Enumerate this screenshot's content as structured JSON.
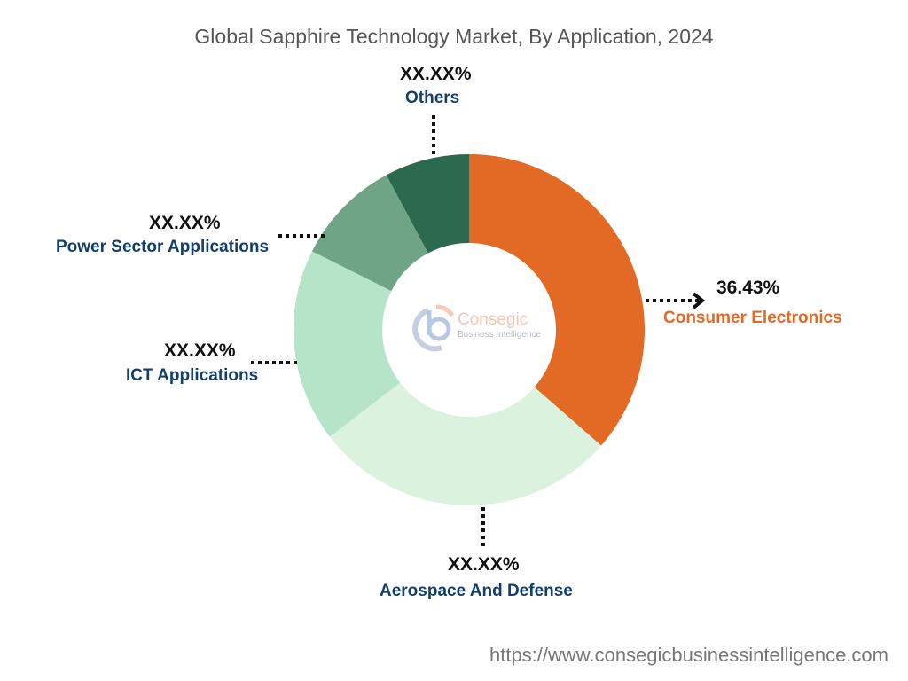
{
  "chart_data": {
    "type": "pie",
    "title": "Global Sapphire Technology Market, By Application, 2024",
    "categories": [
      "Consumer Electronics",
      "Aerospace And Defense",
      "ICT Applications",
      "Power Sector Applications",
      "Others"
    ],
    "values": [
      36.43,
      28.1,
      17.8,
      9.8,
      7.8
    ],
    "value_labels": [
      "36.43%",
      "XX.XX%",
      "XX.XX%",
      "XX.XX%",
      "XX.XX%"
    ],
    "colors": [
      "#E36A25",
      "#DAF2DE",
      "#B5E4C8",
      "#6FA586",
      "#2C6A4F"
    ],
    "donut": true
  },
  "logo": {
    "name": "Consegic",
    "sub": "Business Intelligence"
  },
  "footer": {
    "url": "https://www.consegicbusinessintelligence.com"
  }
}
